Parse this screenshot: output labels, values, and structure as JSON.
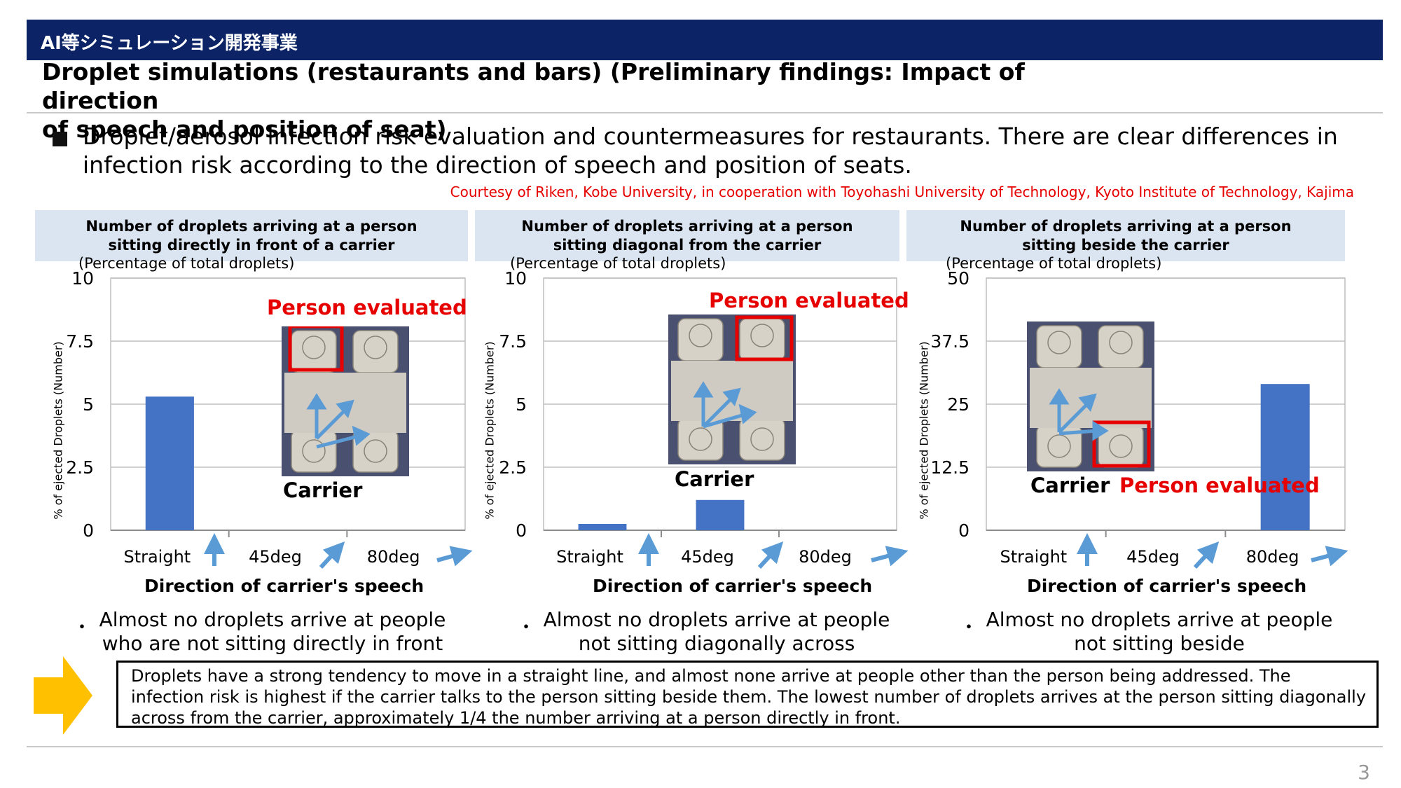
{
  "header": {
    "org_label": "AI等シミュレーション開発事業",
    "title": "Droplet simulations (restaurants and bars) (Preliminary findings: Impact of direction\nof speech and position of seat)"
  },
  "bullet": {
    "text": "Droplet/aerosol infection risk evaluation and countermeasures for restaurants. There are clear differences in infection risk according to the direction of speech and position of seats.",
    "courtesy": "Courtesy of Riken, Kobe University, in cooperation with Toyohashi University of Technology, Kyoto Institute of Technology, Kajima"
  },
  "panels": [
    {
      "heading": "Number of droplets arriving at a person\nsitting directly in front of a carrier",
      "pct_note": "(Percentage of total droplets)",
      "note": "Almost no droplets arrive at people\nwho are not sitting directly in front",
      "label_evaluated": "Person evaluated",
      "label_carrier": "Carrier"
    },
    {
      "heading": "Number of droplets arriving at a person\nsitting diagonal from the carrier",
      "pct_note": "(Percentage of total droplets)",
      "note": "Almost no droplets arrive at people\nnot sitting diagonally across",
      "label_evaluated": "Person evaluated",
      "label_carrier": "Carrier"
    },
    {
      "heading": "Number of droplets arriving at a person\nsitting beside the carrier",
      "pct_note": "(Percentage of total droplets)",
      "note": "Almost no droplets arrive at people\nnot sitting beside",
      "label_evaluated": "Person evaluated",
      "label_carrier": "Carrier"
    }
  ],
  "bullet_mark": "・",
  "conclusion": {
    "text": "Droplets have a strong tendency to move in a straight line, and almost none arrive at people other than the person being addressed. The infection risk is highest if the carrier talks to the person sitting beside them. The lowest number of droplets arrives at the person sitting diagonally across from the carrier, approximately 1/4 the number arriving at a person directly in front."
  },
  "page_number": "3",
  "colors": {
    "banner": "#0c2466",
    "bar": "#4472c4",
    "red": "#e60000",
    "arrow": "#5b9bd5",
    "yellow": "#ffc000"
  },
  "chart_data": [
    {
      "type": "bar",
      "categories": [
        "Straight",
        "45deg",
        "80deg"
      ],
      "values": [
        5.3,
        0,
        0
      ],
      "xlabel": "Direction of carrier's speech",
      "ylabel": "% of ejected Droplets (Number)",
      "ylim": [
        0,
        10
      ],
      "yticks": [
        "0",
        "2.5",
        "5",
        "7.5",
        "10"
      ],
      "tick_values": [
        0,
        2.5,
        5,
        7.5,
        10
      ],
      "grid": true
    },
    {
      "type": "bar",
      "categories": [
        "Straight",
        "45deg",
        "80deg"
      ],
      "values": [
        0.25,
        1.2,
        0
      ],
      "xlabel": "Direction of carrier's speech",
      "ylabel": "% of ejected Droplets (Number)",
      "ylim": [
        0,
        10
      ],
      "yticks": [
        "0",
        "2.5",
        "5",
        "7.5",
        "10"
      ],
      "tick_values": [
        0,
        2.5,
        5,
        7.5,
        10
      ],
      "grid": true
    },
    {
      "type": "bar",
      "categories": [
        "Straight",
        "45deg",
        "80deg"
      ],
      "values": [
        0,
        0,
        29
      ],
      "xlabel": "Direction of carrier's speech",
      "ylabel": "% of ejected Droplets (Number)",
      "ylim": [
        0,
        50
      ],
      "yticks": [
        "0",
        "12.5",
        "25",
        "37.5",
        "50"
      ],
      "tick_values": [
        0,
        12.5,
        25,
        37.5,
        50
      ],
      "grid": true
    }
  ]
}
